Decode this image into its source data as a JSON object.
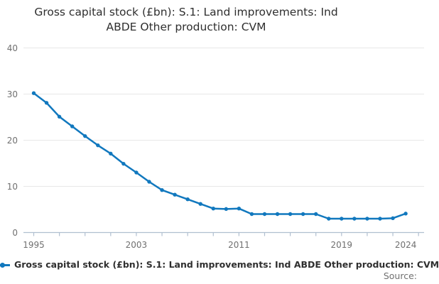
{
  "header": {
    "title_lines": [
      "Gross capital stock (£bn): S.1: Land improvements: Ind",
      "ABDE Other production: CVM"
    ]
  },
  "chart_data": {
    "type": "line",
    "title": "Gross capital stock (£bn): S.1: Land improvements: Ind ABDE Other production: CVM",
    "x": [
      1995,
      1996,
      1997,
      1998,
      1999,
      2000,
      2001,
      2002,
      2003,
      2004,
      2005,
      2006,
      2007,
      2008,
      2009,
      2010,
      2011,
      2012,
      2013,
      2014,
      2015,
      2016,
      2017,
      2018,
      2019,
      2020,
      2021,
      2022,
      2023,
      2024
    ],
    "series": [
      {
        "name": "Gross capital stock (£bn): S.1: Land improvements: Ind ABDE Other production: CVM",
        "values": [
          30.2,
          28.1,
          25.1,
          23.0,
          20.9,
          18.9,
          17.1,
          14.9,
          13.0,
          11.0,
          9.2,
          8.2,
          7.2,
          6.2,
          5.2,
          5.1,
          5.2,
          4.0,
          4.0,
          4.0,
          4.0,
          4.0,
          4.0,
          3.0,
          3.0,
          3.0,
          3.0,
          3.0,
          3.1,
          4.1
        ]
      }
    ],
    "xlabel": "",
    "ylabel": "",
    "ylim": [
      0,
      40
    ],
    "xlim": [
      1995,
      2025
    ],
    "yticks": [
      0,
      10,
      20,
      30,
      40
    ],
    "xtick_labels": [
      "1995",
      "2003",
      "2011",
      "2019",
      "2024"
    ],
    "xtick_label_years": [
      1995,
      2003,
      2011,
      2019,
      2024
    ],
    "minor_xtick_years_step": 2,
    "grid": "horizontal",
    "legend_position": "bottom-left",
    "marker": "circle"
  },
  "footer": {
    "source_label": "Source:"
  },
  "colors": {
    "accent": "#1178be",
    "grid": "#e7e7e7",
    "axis": "#b0bfd0",
    "tick_text": "#707070",
    "title_text": "#2f2f2f",
    "muted_text": "#707070"
  }
}
